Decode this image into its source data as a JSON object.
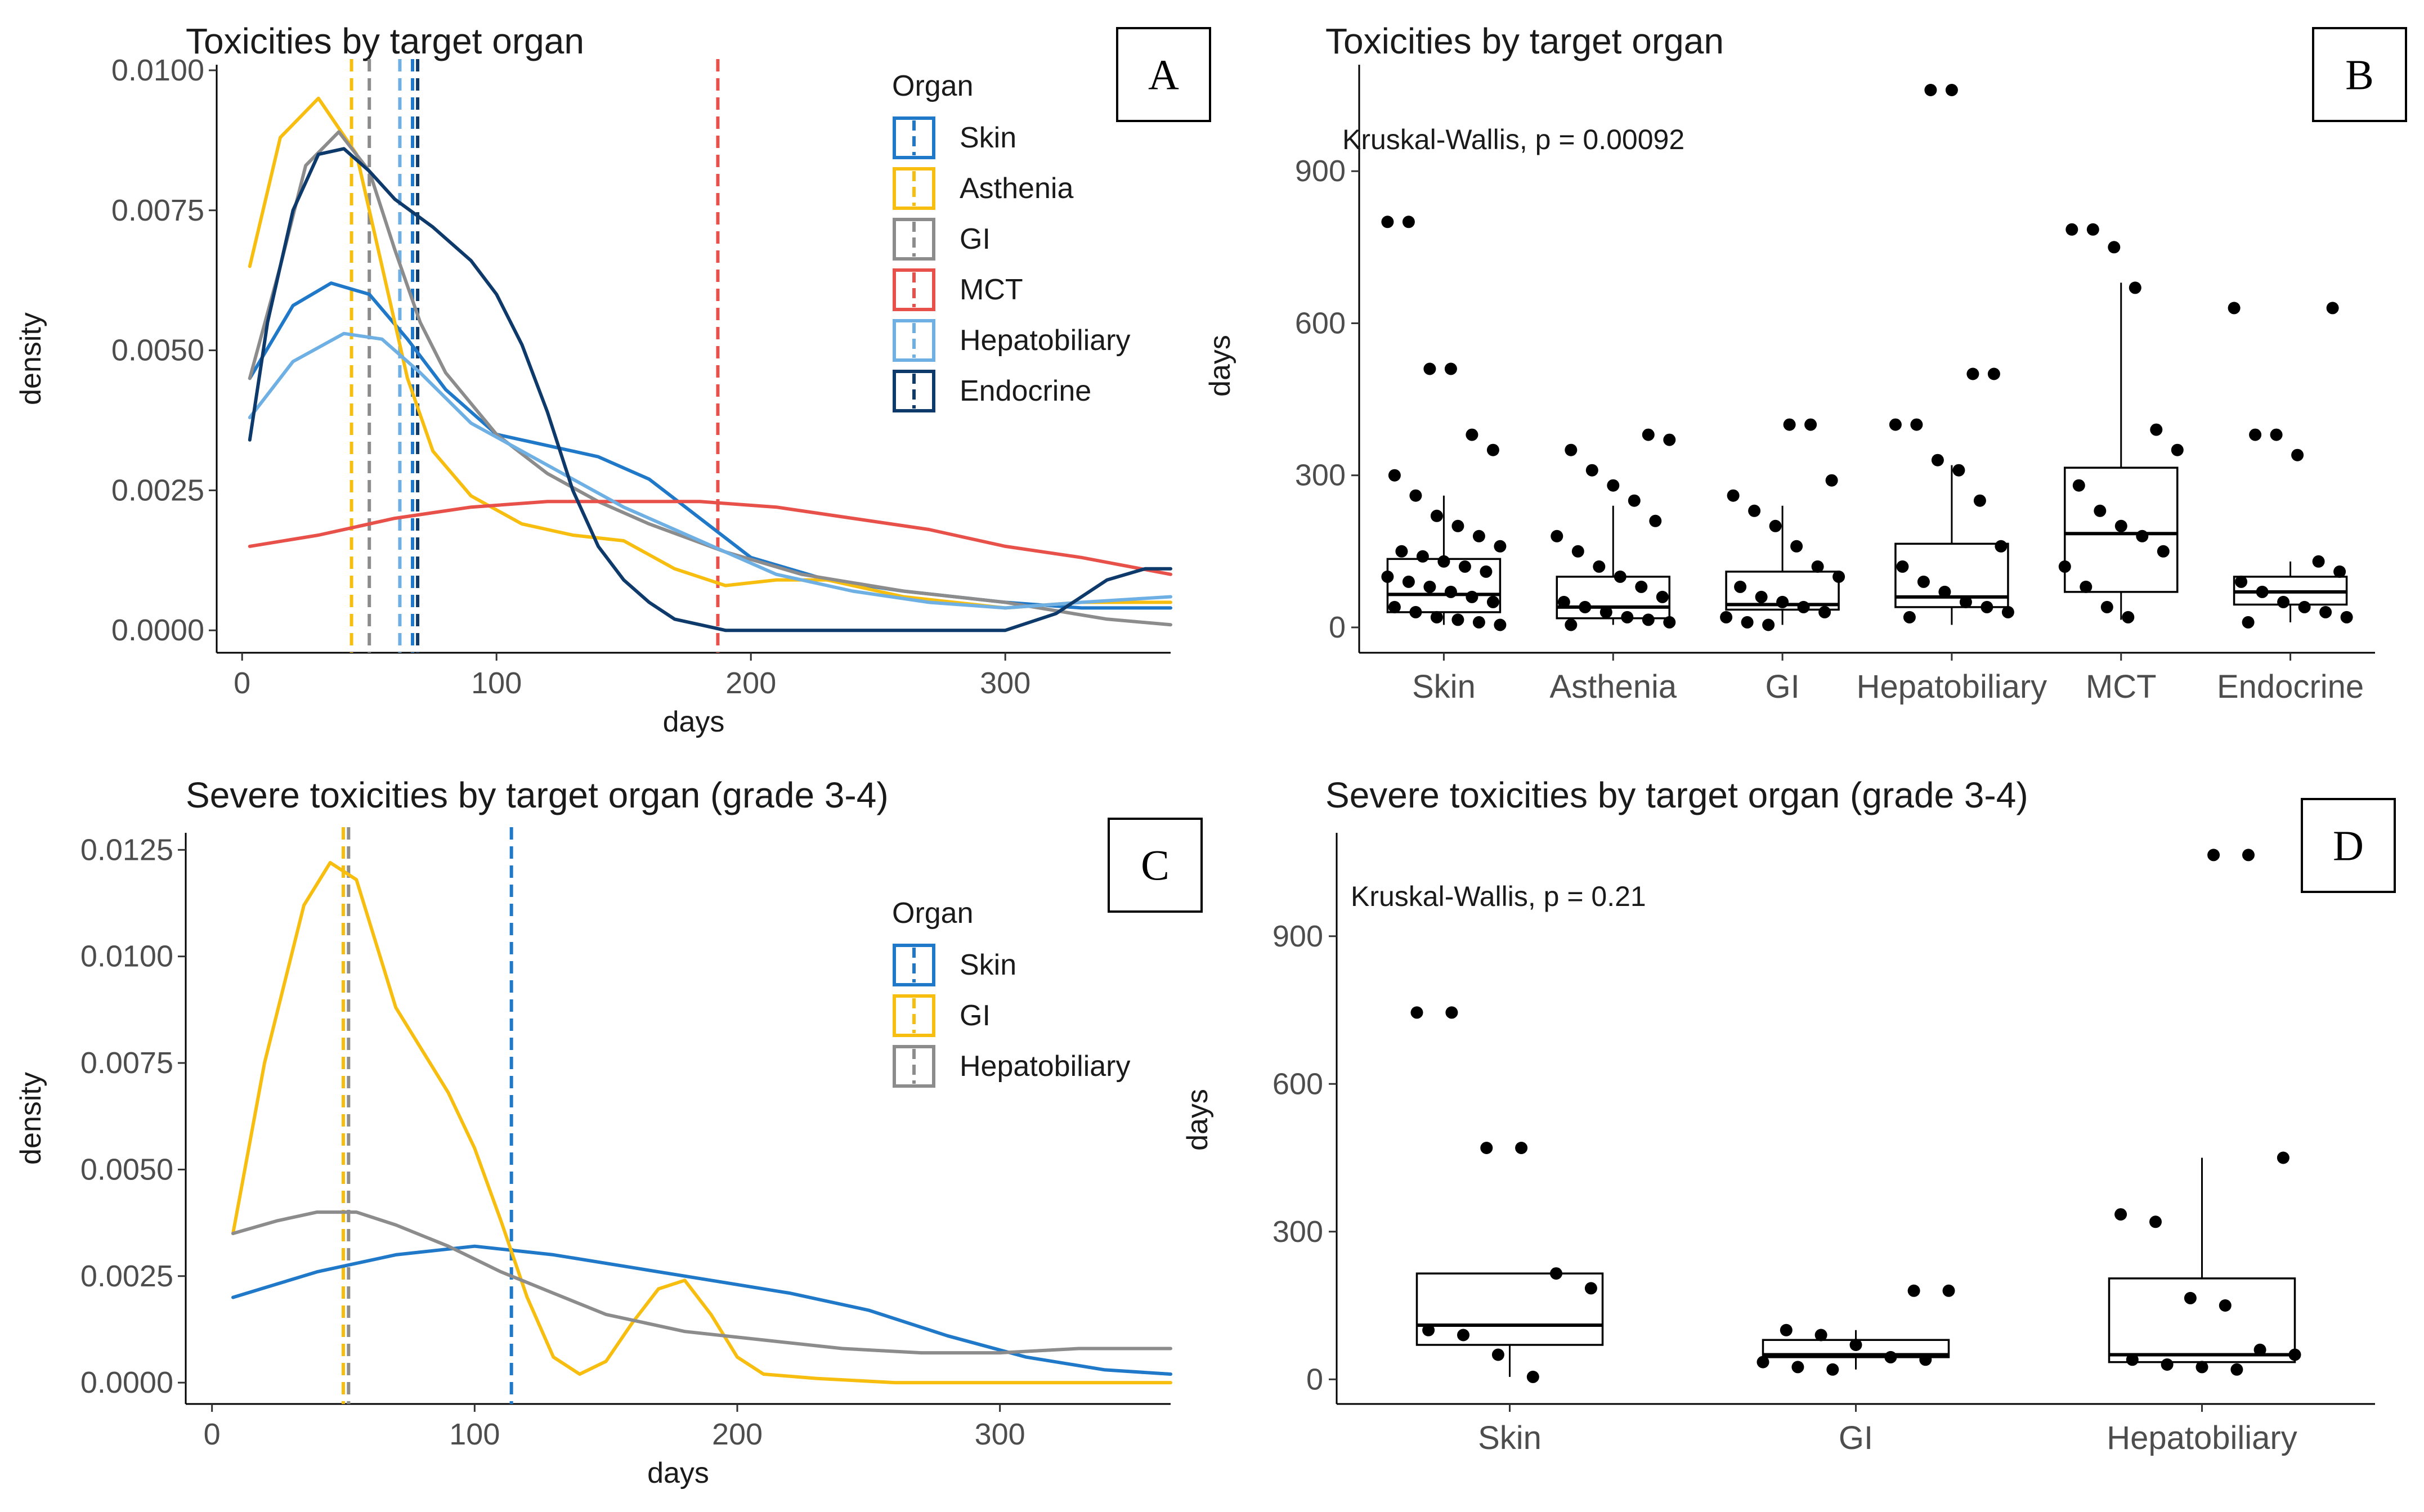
{
  "chart_data": [
    {
      "panel": "A",
      "type": "line",
      "title": "Toxicities by target organ",
      "xlabel": "days",
      "ylabel": "density",
      "xlim": [
        -10,
        365
      ],
      "ylim": [
        -0.0004,
        0.0101
      ],
      "xticks": [
        0,
        100,
        200,
        300
      ],
      "yticks": [
        0.0,
        0.0025,
        0.005,
        0.0075,
        0.01
      ],
      "ytick_labels": [
        "0.0000",
        "0.0025",
        "0.0050",
        "0.0075",
        "0.0100"
      ],
      "legend": {
        "title": "Organ",
        "position": "top-right"
      },
      "series": [
        {
          "name": "Skin",
          "color": "#1f78c8",
          "median": 67,
          "x": [
            3,
            20,
            35,
            50,
            65,
            80,
            100,
            120,
            140,
            160,
            180,
            200,
            230,
            260,
            300,
            330,
            365
          ],
          "y": [
            0.0045,
            0.0058,
            0.0062,
            0.006,
            0.0052,
            0.0043,
            0.0035,
            0.0033,
            0.0031,
            0.0027,
            0.002,
            0.0013,
            0.0009,
            0.0007,
            0.0005,
            0.0004,
            0.0004
          ]
        },
        {
          "name": "Asthenia",
          "color": "#f7be0f",
          "median": 43,
          "x": [
            3,
            15,
            30,
            45,
            55,
            65,
            75,
            90,
            110,
            130,
            150,
            170,
            190,
            210,
            230,
            260,
            300,
            330,
            365
          ],
          "y": [
            0.0065,
            0.0088,
            0.0095,
            0.0085,
            0.0065,
            0.0045,
            0.0032,
            0.0024,
            0.0019,
            0.0017,
            0.0016,
            0.0011,
            0.0008,
            0.0009,
            0.0009,
            0.0006,
            0.0004,
            0.0005,
            0.0005
          ]
        },
        {
          "name": "GI",
          "color": "#8c8c8c",
          "median": 50,
          "x": [
            3,
            15,
            25,
            38,
            50,
            60,
            70,
            80,
            100,
            120,
            140,
            160,
            190,
            220,
            260,
            300,
            340,
            365
          ],
          "y": [
            0.0045,
            0.0065,
            0.0083,
            0.0089,
            0.0082,
            0.0068,
            0.0055,
            0.0046,
            0.0035,
            0.0028,
            0.0023,
            0.0019,
            0.0014,
            0.001,
            0.0007,
            0.0005,
            0.0002,
            0.0001
          ]
        },
        {
          "name": "MCT",
          "color": "#e8504a",
          "median": 187,
          "x": [
            3,
            30,
            60,
            90,
            120,
            150,
            180,
            210,
            240,
            270,
            300,
            330,
            365
          ],
          "y": [
            0.0015,
            0.0017,
            0.002,
            0.0022,
            0.0023,
            0.0023,
            0.0023,
            0.0022,
            0.002,
            0.0018,
            0.0015,
            0.0013,
            0.001
          ]
        },
        {
          "name": "Hepatobiliary",
          "color": "#6fb0e4",
          "median": 62,
          "x": [
            3,
            20,
            40,
            55,
            70,
            90,
            110,
            130,
            150,
            170,
            190,
            210,
            240,
            270,
            300,
            330,
            365
          ],
          "y": [
            0.0038,
            0.0048,
            0.0053,
            0.0052,
            0.0046,
            0.0037,
            0.0032,
            0.0027,
            0.0022,
            0.0018,
            0.0014,
            0.001,
            0.0007,
            0.0005,
            0.0004,
            0.0005,
            0.0006
          ]
        },
        {
          "name": "Endocrine",
          "color": "#0e3a6b",
          "median": 69,
          "x": [
            3,
            10,
            20,
            30,
            40,
            50,
            60,
            75,
            90,
            100,
            110,
            120,
            130,
            140,
            150,
            160,
            170,
            180,
            190,
            200,
            250,
            300,
            320,
            340,
            355,
            365
          ],
          "y": [
            0.0034,
            0.0055,
            0.0075,
            0.0085,
            0.0086,
            0.0082,
            0.0077,
            0.0072,
            0.0066,
            0.006,
            0.0051,
            0.0039,
            0.0025,
            0.0015,
            0.0009,
            0.0005,
            0.0002,
            0.0001,
            0.0,
            0.0,
            0.0,
            0.0,
            0.0003,
            0.0009,
            0.0011,
            0.0011
          ]
        }
      ]
    },
    {
      "panel": "B",
      "type": "box",
      "title": "Toxicities by target organ",
      "xlabel": "",
      "ylabel": "days",
      "ylim": [
        -50,
        1110
      ],
      "yticks": [
        0,
        300,
        600,
        900
      ],
      "annotation": "Kruskal-Wallis, p = 0.00092",
      "categories": [
        "Skin",
        "Asthenia",
        "GI",
        "Hepatobiliary",
        "MCT",
        "Endocrine"
      ],
      "boxes": [
        {
          "q1": 30,
          "median": 65,
          "q3": 135,
          "whisker_low": 5,
          "whisker_high": 260
        },
        {
          "q1": 18,
          "median": 40,
          "q3": 100,
          "whisker_low": 5,
          "whisker_high": 240
        },
        {
          "q1": 35,
          "median": 45,
          "q3": 110,
          "whisker_low": 5,
          "whisker_high": 240
        },
        {
          "q1": 40,
          "median": 60,
          "q3": 165,
          "whisker_low": 5,
          "whisker_high": 320
        },
        {
          "q1": 70,
          "median": 185,
          "q3": 315,
          "whisker_low": 15,
          "whisker_high": 680
        },
        {
          "q1": 45,
          "median": 70,
          "q3": 100,
          "whisker_low": 10,
          "whisker_high": 130
        }
      ],
      "points": [
        [
          800,
          800,
          510,
          510,
          380,
          350,
          300,
          260,
          220,
          200,
          180,
          160,
          150,
          140,
          130,
          120,
          110,
          100,
          90,
          80,
          70,
          60,
          50,
          40,
          30,
          20,
          15,
          10,
          5
        ],
        [
          380,
          370,
          350,
          310,
          280,
          250,
          210,
          180,
          150,
          120,
          100,
          80,
          60,
          50,
          40,
          30,
          20,
          15,
          10,
          5
        ],
        [
          400,
          400,
          290,
          260,
          230,
          200,
          160,
          120,
          100,
          80,
          60,
          50,
          40,
          30,
          20,
          10,
          5
        ],
        [
          1060,
          1060,
          500,
          500,
          400,
          400,
          330,
          310,
          250,
          160,
          120,
          90,
          70,
          50,
          40,
          30,
          20
        ],
        [
          785,
          785,
          750,
          670,
          390,
          350,
          280,
          230,
          200,
          180,
          150,
          120,
          80,
          40,
          20
        ],
        [
          630,
          630,
          380,
          380,
          340,
          130,
          110,
          90,
          70,
          50,
          40,
          30,
          20,
          10
        ]
      ]
    },
    {
      "panel": "C",
      "type": "line",
      "title": "Severe toxicities by target organ (grade 3-4)",
      "xlabel": "days",
      "ylabel": "density",
      "xlim": [
        -10,
        365
      ],
      "ylim": [
        -0.0005,
        0.0129
      ],
      "xticks": [
        0,
        100,
        200,
        300
      ],
      "yticks": [
        0.0,
        0.0025,
        0.005,
        0.0075,
        0.01,
        0.0125
      ],
      "ytick_labels": [
        "0.0000",
        "0.0025",
        "0.0050",
        "0.0075",
        "0.0100",
        "0.0125"
      ],
      "legend": {
        "title": "Organ",
        "position": "top-right"
      },
      "series": [
        {
          "name": "Skin",
          "color": "#1f78c8",
          "median": 114,
          "x": [
            8,
            40,
            70,
            100,
            130,
            160,
            190,
            220,
            250,
            280,
            310,
            340,
            365
          ],
          "y": [
            0.002,
            0.0026,
            0.003,
            0.0032,
            0.003,
            0.0027,
            0.0024,
            0.0021,
            0.0017,
            0.0011,
            0.0006,
            0.0003,
            0.0002
          ]
        },
        {
          "name": "GI",
          "color": "#f7be0f",
          "median": 50,
          "x": [
            8,
            20,
            35,
            45,
            55,
            65,
            70,
            80,
            90,
            100,
            110,
            120,
            130,
            140,
            150,
            160,
            170,
            180,
            190,
            200,
            210,
            230,
            260,
            300,
            365
          ],
          "y": [
            0.0035,
            0.0075,
            0.0112,
            0.0122,
            0.0118,
            0.0098,
            0.0088,
            0.0078,
            0.0068,
            0.0055,
            0.0038,
            0.002,
            0.0006,
            0.0002,
            0.0005,
            0.0014,
            0.0022,
            0.0024,
            0.0016,
            0.0006,
            0.0002,
            0.0001,
            0.0,
            0.0,
            0.0
          ]
        },
        {
          "name": "Hepatobiliary",
          "color": "#8c8c8c",
          "median": 52,
          "x": [
            8,
            25,
            40,
            55,
            70,
            90,
            110,
            130,
            150,
            180,
            210,
            240,
            270,
            300,
            330,
            365
          ],
          "y": [
            0.0035,
            0.0038,
            0.004,
            0.004,
            0.0037,
            0.0032,
            0.0026,
            0.0021,
            0.0016,
            0.0012,
            0.001,
            0.0008,
            0.0007,
            0.0007,
            0.0008,
            0.0008
          ]
        }
      ]
    },
    {
      "panel": "D",
      "type": "box",
      "title": "Severe toxicities by target organ (grade 3-4)",
      "xlabel": "",
      "ylabel": "days",
      "ylim": [
        -50,
        1110
      ],
      "yticks": [
        0,
        300,
        600,
        900
      ],
      "annotation": "Kruskal-Wallis, p = 0.21",
      "categories": [
        "Skin",
        "GI",
        "Hepatobiliary"
      ],
      "boxes": [
        {
          "q1": 70,
          "median": 110,
          "q3": 215,
          "whisker_low": 5,
          "whisker_high": 215
        },
        {
          "q1": 45,
          "median": 50,
          "q3": 80,
          "whisker_low": 20,
          "whisker_high": 100
        },
        {
          "q1": 35,
          "median": 50,
          "q3": 205,
          "whisker_low": 20,
          "whisker_high": 450
        }
      ],
      "points": [
        [
          745,
          745,
          470,
          470,
          215,
          185,
          100,
          90,
          50,
          5
        ],
        [
          180,
          180,
          100,
          90,
          70,
          45,
          40,
          35,
          25,
          20
        ],
        [
          1065,
          1065,
          450,
          335,
          320,
          165,
          150,
          60,
          50,
          40,
          30,
          25,
          20
        ]
      ]
    }
  ],
  "panel_labels": {
    "A": "A",
    "B": "B",
    "C": "C",
    "D": "D"
  }
}
